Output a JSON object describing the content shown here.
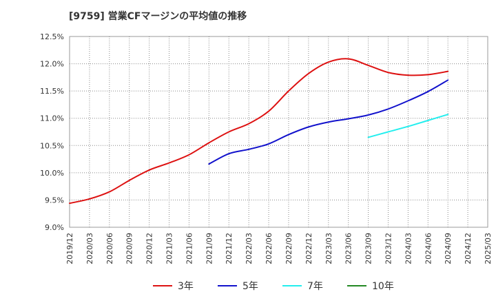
{
  "title": "[9759]  営業CFマージンの平均値の推移",
  "chart_data": {
    "type": "line",
    "ylim": [
      9.0,
      12.5
    ],
    "y_ticks": [
      "9.0%",
      "9.5%",
      "10.0%",
      "10.5%",
      "11.0%",
      "11.5%",
      "12.0%",
      "12.5%"
    ],
    "y_tick_values": [
      9.0,
      9.5,
      10.0,
      10.5,
      11.0,
      11.5,
      12.0,
      12.5
    ],
    "x_ticks": [
      "2019/12",
      "2020/03",
      "2020/06",
      "2020/09",
      "2020/12",
      "2021/03",
      "2021/06",
      "2021/09",
      "2021/12",
      "2022/03",
      "2022/06",
      "2022/09",
      "2022/12",
      "2023/03",
      "2023/06",
      "2023/09",
      "2023/12",
      "2024/03",
      "2024/06",
      "2024/09",
      "2024/12",
      "2025/03"
    ],
    "grid": true,
    "legend_position": "bottom",
    "series": [
      {
        "name": "3年",
        "color": "#dd1111",
        "points": [
          [
            "2019/12",
            9.44
          ],
          [
            "2020/03",
            9.52
          ],
          [
            "2020/06",
            9.65
          ],
          [
            "2020/09",
            9.86
          ],
          [
            "2020/12",
            10.05
          ],
          [
            "2021/03",
            10.18
          ],
          [
            "2021/06",
            10.33
          ],
          [
            "2021/09",
            10.55
          ],
          [
            "2021/12",
            10.75
          ],
          [
            "2022/03",
            10.9
          ],
          [
            "2022/06",
            11.13
          ],
          [
            "2022/09",
            11.5
          ],
          [
            "2022/12",
            11.82
          ],
          [
            "2023/03",
            12.03
          ],
          [
            "2023/06",
            12.09
          ],
          [
            "2023/09",
            11.97
          ],
          [
            "2023/12",
            11.84
          ],
          [
            "2024/03",
            11.79
          ],
          [
            "2024/06",
            11.8
          ],
          [
            "2024/09",
            11.86
          ]
        ]
      },
      {
        "name": "5年",
        "color": "#1111cc",
        "points": [
          [
            "2021/09",
            10.16
          ],
          [
            "2021/12",
            10.35
          ],
          [
            "2022/03",
            10.43
          ],
          [
            "2022/06",
            10.53
          ],
          [
            "2022/09",
            10.7
          ],
          [
            "2022/12",
            10.84
          ],
          [
            "2023/03",
            10.93
          ],
          [
            "2023/06",
            10.99
          ],
          [
            "2023/09",
            11.06
          ],
          [
            "2023/12",
            11.17
          ],
          [
            "2024/03",
            11.32
          ],
          [
            "2024/06",
            11.49
          ],
          [
            "2024/09",
            11.7
          ]
        ]
      },
      {
        "name": "7年",
        "color": "#22eeee",
        "points": [
          [
            "2023/09",
            10.65
          ],
          [
            "2023/12",
            10.75
          ],
          [
            "2024/03",
            10.85
          ],
          [
            "2024/06",
            10.96
          ],
          [
            "2024/09",
            11.07
          ]
        ]
      },
      {
        "name": "10年",
        "color": "#228822",
        "points": []
      }
    ]
  }
}
